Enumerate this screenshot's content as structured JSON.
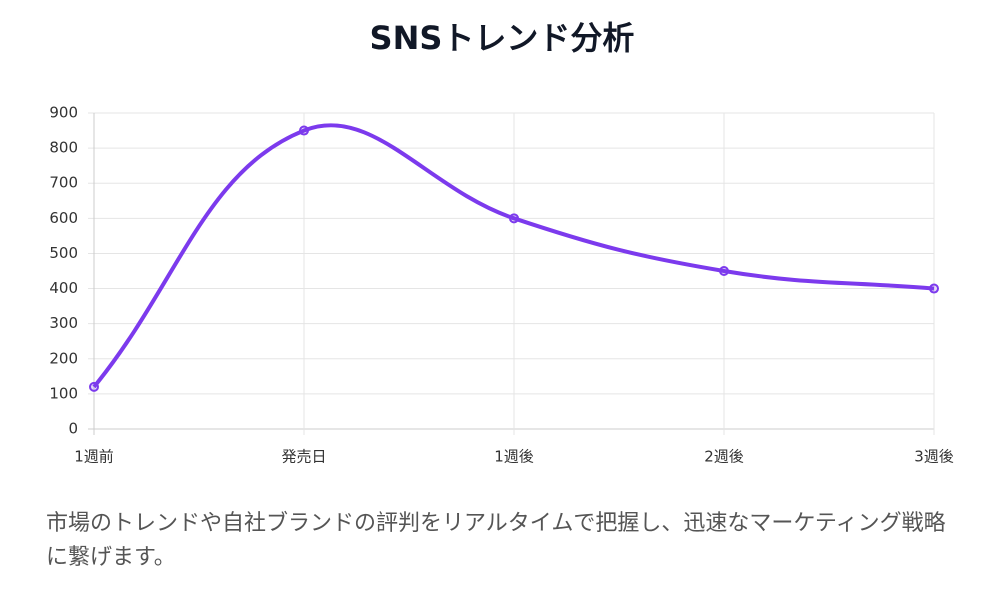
{
  "chart_data": {
    "type": "line",
    "title": "SNSトレンド分析",
    "categories": [
      "1週前",
      "発売日",
      "1週後",
      "2週後",
      "3週後"
    ],
    "series": [
      {
        "name": null,
        "color": "#7c3aed",
        "values": [
          120,
          850,
          600,
          450,
          400
        ]
      }
    ],
    "ylim": [
      0,
      900
    ],
    "yticks": [
      0,
      100,
      200,
      300,
      400,
      500,
      600,
      700,
      800,
      900
    ],
    "grid": true
  },
  "description": "市場のトレンドや自社ブランドの評判をリアルタイムで把握し、迅速なマーケティング戦略に繋げます。"
}
